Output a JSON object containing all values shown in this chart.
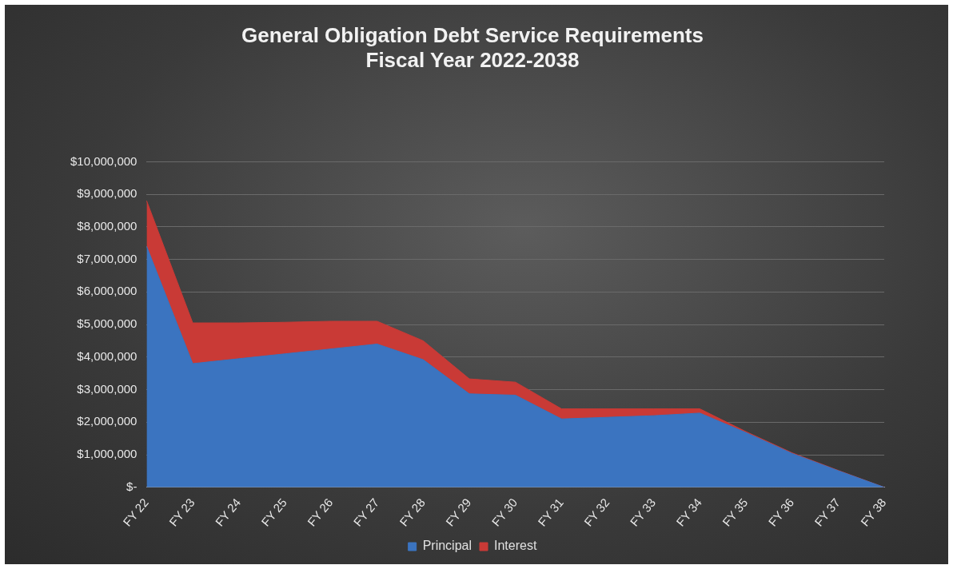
{
  "chart_data": {
    "type": "area",
    "title": "General Obligation Debt Service Requirements\nFiscal Year 2022-2038",
    "categories": [
      "FY 22",
      "FY 23",
      "FY 24",
      "FY 25",
      "FY 26",
      "FY 27",
      "FY 28",
      "FY 29",
      "FY 30",
      "FY 31",
      "FY 32",
      "FY 33",
      "FY 34",
      "FY 35",
      "FY 36",
      "FY 37",
      "FY 38"
    ],
    "stacked": true,
    "series": [
      {
        "name": "Principal",
        "color": "#3b74c0",
        "values": [
          7400000,
          3800000,
          3950000,
          4100000,
          4250000,
          4400000,
          3920000,
          2870000,
          2830000,
          2100000,
          2150000,
          2200000,
          2280000,
          1680000,
          1040000,
          510000,
          0
        ]
      },
      {
        "name": "Interest",
        "color": "#c93a36",
        "values": [
          1400000,
          1250000,
          1100000,
          970000,
          850000,
          700000,
          580000,
          460000,
          400000,
          310000,
          260000,
          210000,
          130000,
          30000,
          20000,
          10000,
          0
        ]
      }
    ],
    "ylim": [
      0,
      10000000
    ],
    "yticks": [
      {
        "value": 0,
        "label": "$-"
      },
      {
        "value": 1000000,
        "label": "$1,000,000"
      },
      {
        "value": 2000000,
        "label": "$2,000,000"
      },
      {
        "value": 3000000,
        "label": "$3,000,000"
      },
      {
        "value": 4000000,
        "label": "$4,000,000"
      },
      {
        "value": 5000000,
        "label": "$5,000,000"
      },
      {
        "value": 6000000,
        "label": "$6,000,000"
      },
      {
        "value": 7000000,
        "label": "$7,000,000"
      },
      {
        "value": 8000000,
        "label": "$8,000,000"
      },
      {
        "value": 9000000,
        "label": "$9,000,000"
      },
      {
        "value": 10000000,
        "label": "$10,000,000"
      }
    ],
    "grid": "y",
    "legend": "bottom"
  }
}
